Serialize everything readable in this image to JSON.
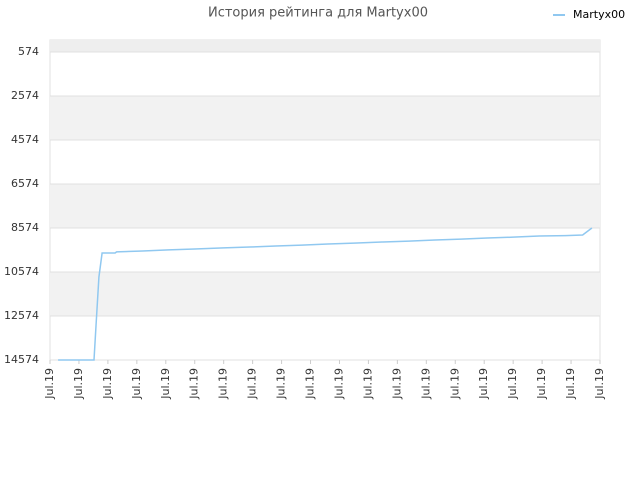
{
  "chart_data": {
    "type": "line",
    "title": "История рейтинга для Martyx00",
    "y_inverted": true,
    "ylim": [
      29,
      14574
    ],
    "yticks": [
      574,
      2574,
      4574,
      6574,
      8574,
      10574,
      12574,
      14574
    ],
    "xlim": [
      0,
      19
    ],
    "xticks": [
      {
        "value": 0,
        "label": "Jul.19"
      },
      {
        "value": 1,
        "label": "Jul.19"
      },
      {
        "value": 2,
        "label": "Jul.19"
      },
      {
        "value": 3,
        "label": "Jul.19"
      },
      {
        "value": 4,
        "label": "Jul.19"
      },
      {
        "value": 5,
        "label": "Jul.19"
      },
      {
        "value": 6,
        "label": "Jul.19"
      },
      {
        "value": 7,
        "label": "Jul.19"
      },
      {
        "value": 8,
        "label": "Jul.19"
      },
      {
        "value": 9,
        "label": "Jul.19"
      },
      {
        "value": 10,
        "label": "Jul.19"
      },
      {
        "value": 11,
        "label": "Jul.19"
      },
      {
        "value": 12,
        "label": "Jul.19"
      },
      {
        "value": 13,
        "label": "Jul.19"
      },
      {
        "value": 14,
        "label": "Jul.19"
      },
      {
        "value": 15,
        "label": "Jul.19"
      },
      {
        "value": 16,
        "label": "Jul.19"
      },
      {
        "value": 17,
        "label": "Jul.19"
      },
      {
        "value": 18,
        "label": "Jul.19"
      },
      {
        "value": 19,
        "label": "Jul.19"
      }
    ],
    "grid": true,
    "legend_position": "top-right",
    "series": [
      {
        "name": "Martyx00",
        "color": "#90c8f0",
        "x": [
          0.28,
          1.52,
          1.59,
          1.69,
          1.8,
          2.25,
          2.3,
          3.2,
          4.1,
          5.0,
          6.0,
          6.9,
          7.8,
          8.7,
          9.6,
          10.5,
          11.5,
          12.4,
          13.3,
          14.2,
          15.1,
          16.0,
          16.9,
          17.8,
          18.4,
          18.72
        ],
        "values": [
          14574,
          14574,
          13000,
          10800,
          9710,
          9710,
          9660,
          9620,
          9570,
          9530,
          9480,
          9440,
          9390,
          9350,
          9300,
          9260,
          9210,
          9170,
          9120,
          9080,
          9030,
          8990,
          8940,
          8920,
          8890,
          8574
        ]
      }
    ]
  }
}
